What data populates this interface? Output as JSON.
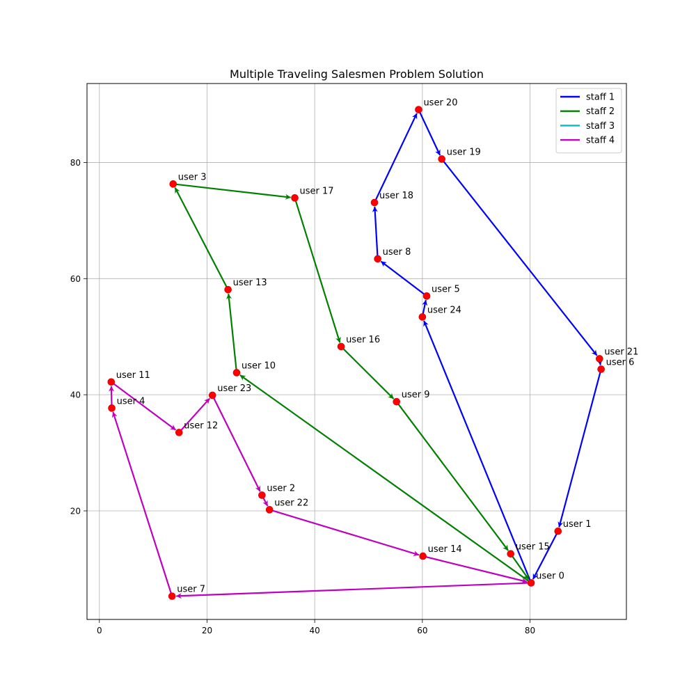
{
  "chart_data": {
    "type": "line",
    "title": "Multiple Traveling Salesmen Problem Solution",
    "xlabel": "",
    "ylabel": "",
    "xlim": [
      -2.3,
      97.9
    ],
    "ylim": [
      1.3,
      93.6
    ],
    "xticks": [
      0,
      20,
      40,
      60,
      80
    ],
    "yticks": [
      20,
      40,
      60,
      80
    ],
    "grid": true,
    "legend_position": "top-right",
    "node_color": "#ff0000",
    "node_edge_color": "#cc0000",
    "nodes": [
      {
        "name": "user 0",
        "x": 80.2,
        "y": 7.6
      },
      {
        "name": "user 1",
        "x": 85.2,
        "y": 16.5
      },
      {
        "name": "user 2",
        "x": 30.2,
        "y": 22.7
      },
      {
        "name": "user 3",
        "x": 13.7,
        "y": 76.3
      },
      {
        "name": "user 4",
        "x": 2.3,
        "y": 37.7
      },
      {
        "name": "user 5",
        "x": 60.8,
        "y": 57.0
      },
      {
        "name": "user 6",
        "x": 93.2,
        "y": 44.4
      },
      {
        "name": "user 7",
        "x": 13.5,
        "y": 5.3
      },
      {
        "name": "user 8",
        "x": 51.7,
        "y": 63.4
      },
      {
        "name": "user 9",
        "x": 55.2,
        "y": 38.8
      },
      {
        "name": "user 10",
        "x": 25.5,
        "y": 43.8
      },
      {
        "name": "user 11",
        "x": 2.2,
        "y": 42.2
      },
      {
        "name": "user 12",
        "x": 14.8,
        "y": 33.5
      },
      {
        "name": "user 13",
        "x": 23.9,
        "y": 58.1
      },
      {
        "name": "user 14",
        "x": 60.1,
        "y": 12.2
      },
      {
        "name": "user 15",
        "x": 76.4,
        "y": 12.6
      },
      {
        "name": "user 16",
        "x": 44.9,
        "y": 48.3
      },
      {
        "name": "user 17",
        "x": 36.3,
        "y": 73.9
      },
      {
        "name": "user 18",
        "x": 51.1,
        "y": 73.1
      },
      {
        "name": "user 19",
        "x": 63.6,
        "y": 80.6
      },
      {
        "name": "user 20",
        "x": 59.3,
        "y": 89.1
      },
      {
        "name": "user 21",
        "x": 92.9,
        "y": 46.2
      },
      {
        "name": "user 22",
        "x": 31.6,
        "y": 20.2
      },
      {
        "name": "user 23",
        "x": 21.0,
        "y": 39.9
      },
      {
        "name": "user 24",
        "x": 60.0,
        "y": 53.4
      }
    ],
    "series": [
      {
        "name": "staff 1",
        "color": "#0000ff",
        "route": [
          0,
          24,
          5,
          8,
          18,
          20,
          19,
          21,
          6,
          1,
          0
        ]
      },
      {
        "name": "staff 2",
        "color": "#008000",
        "route": [
          0,
          10,
          13,
          3,
          17,
          16,
          9,
          15,
          0
        ]
      },
      {
        "name": "staff 3",
        "color": "#00bfbf",
        "route": []
      },
      {
        "name": "staff 4",
        "color": "#bf00bf",
        "route": [
          0,
          7,
          4,
          11,
          12,
          23,
          2,
          22,
          14,
          0
        ]
      }
    ]
  }
}
